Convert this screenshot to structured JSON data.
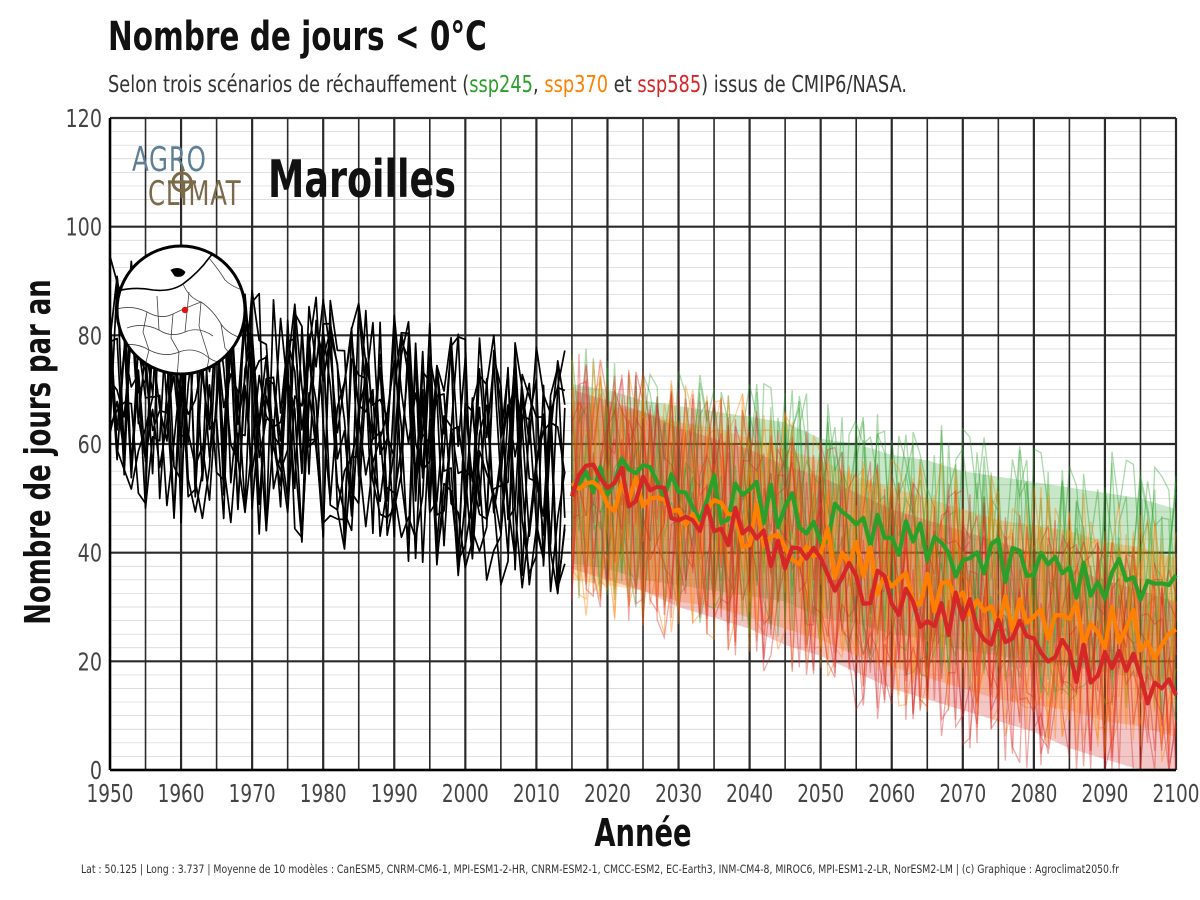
{
  "title": "Nombre de jours < 0°C",
  "subtitle": {
    "prefix": "Selon trois scénarios de réchauffement (",
    "s1": "ssp245",
    "sep1": ", ",
    "s2": "ssp370",
    "sep2": " et ",
    "s3": "ssp585",
    "suffix": ") issus de CMIP6/NASA."
  },
  "logo": {
    "line1": "AGRO",
    "line2": "CLIMAT"
  },
  "location": "Maroilles",
  "footer": "Lat : 50.125  |  Long : 3.737  |  Moyenne de 10 modèles : CanESM5, CNRM-CM6-1, MPI-ESM1-2-HR, CNRM-ESM2-1, CMCC-ESM2, EC-Earth3, INM-CM4-8, MIROC6, MPI-ESM1-2-LR, NorESM2-LM  |  (c) Graphique : Agroclimat2050.fr",
  "colors": {
    "ssp245": "#2aa02a",
    "ssp370": "#ff8000",
    "ssp585": "#d62728",
    "historical": "#000000"
  },
  "chart_data": {
    "type": "line",
    "title": "Nombre de jours < 0°C",
    "xlabel": "Année",
    "ylabel": "Nombre de jours par an",
    "xlim": [
      1950,
      2100
    ],
    "ylim": [
      0,
      120
    ],
    "xticks": [
      1950,
      1960,
      1970,
      1980,
      1990,
      2000,
      2010,
      2020,
      2030,
      2040,
      2050,
      2060,
      2070,
      2080,
      2090,
      2100
    ],
    "xtick_labels": [
      "1950",
      "1960",
      "1970",
      "1980",
      "1990",
      "2000",
      "2010",
      "2020",
      "2030",
      "2040",
      "2050",
      "2060",
      "2070",
      "2080",
      "2090",
      "2100"
    ],
    "yticks": [
      0,
      20,
      40,
      60,
      80,
      100,
      120
    ],
    "ytick_labels": [
      "0",
      "20",
      "40",
      "60",
      "80",
      "100",
      "120"
    ],
    "historical_period": [
      1950,
      2014
    ],
    "historical_model_count": 10,
    "historical_mean_approx": {
      "x": [
        1950,
        1960,
        1970,
        1980,
        1990,
        2000,
        2014
      ],
      "y": [
        72,
        68,
        66,
        64,
        62,
        58,
        55
      ]
    },
    "scenario_period": [
      2015,
      2100
    ],
    "series": [
      {
        "name": "ssp245",
        "x": [
          2015,
          2020,
          2025,
          2030,
          2035,
          2040,
          2045,
          2050,
          2055,
          2060,
          2065,
          2070,
          2075,
          2080,
          2085,
          2090,
          2095,
          2100
        ],
        "values": [
          55,
          54,
          52,
          51,
          50,
          49,
          48,
          45,
          44,
          42,
          41,
          39,
          38,
          37,
          36,
          35,
          34,
          32
        ]
      },
      {
        "name": "ssp370",
        "x": [
          2015,
          2020,
          2025,
          2030,
          2035,
          2040,
          2045,
          2050,
          2055,
          2060,
          2065,
          2070,
          2075,
          2080,
          2085,
          2090,
          2095,
          2100
        ],
        "values": [
          52,
          51,
          50,
          48,
          47,
          45,
          43,
          41,
          38,
          36,
          34,
          32,
          30,
          29,
          28,
          26,
          25,
          23
        ]
      },
      {
        "name": "ssp585",
        "x": [
          2015,
          2020,
          2025,
          2030,
          2035,
          2040,
          2045,
          2050,
          2055,
          2060,
          2065,
          2070,
          2075,
          2080,
          2085,
          2090,
          2095,
          2100
        ],
        "values": [
          54,
          52,
          50,
          47,
          45,
          43,
          40,
          38,
          35,
          32,
          30,
          28,
          26,
          24,
          21,
          19,
          17,
          15
        ]
      }
    ]
  }
}
